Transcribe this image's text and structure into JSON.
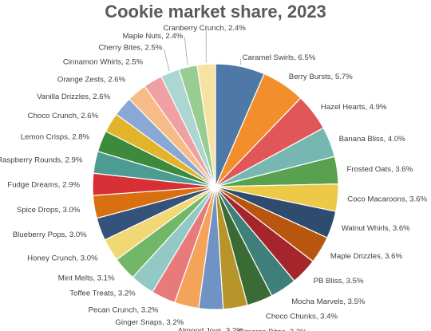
{
  "chart_data": {
    "type": "pie",
    "title": "Cookie market share, 2023",
    "label_format": "{name}, {value}%",
    "series": [
      {
        "name": "Caramel Swirls",
        "value": 6.5,
        "color": "#4e79a7"
      },
      {
        "name": "Berry Bursts",
        "value": 5.7,
        "color": "#f28e2b"
      },
      {
        "name": "Hazel Hearts",
        "value": 4.9,
        "color": "#e15759"
      },
      {
        "name": "Banana Bliss",
        "value": 4.0,
        "color": "#76b7b2"
      },
      {
        "name": "Frosted Oats",
        "value": 3.6,
        "color": "#59a14f"
      },
      {
        "name": "Coco Macaroons",
        "value": 3.6,
        "color": "#edc948"
      },
      {
        "name": "Walnut Whirls",
        "value": 3.6,
        "color": "#2f4b6e"
      },
      {
        "name": "Maple Drizzles",
        "value": 3.6,
        "color": "#b8560f"
      },
      {
        "name": "PB Bliss",
        "value": 3.5,
        "color": "#a4262c"
      },
      {
        "name": "Mocha Marvels",
        "value": 3.5,
        "color": "#3e7f7a"
      },
      {
        "name": "Choco Chunks",
        "value": 3.4,
        "color": "#3a6b35"
      },
      {
        "name": "S'mores Bites",
        "value": 3.2,
        "color": "#b8952a"
      },
      {
        "name": "Almond Joys",
        "value": 3.2,
        "color": "#6f93c4"
      },
      {
        "name": "Ginger Snaps",
        "value": 3.2,
        "color": "#f4a35b"
      },
      {
        "name": "Pecan Crunch",
        "value": 3.2,
        "color": "#e87a7c"
      },
      {
        "name": "Toffee Treats",
        "value": 3.2,
        "color": "#92c9c4"
      },
      {
        "name": "Mint Melts",
        "value": 3.1,
        "color": "#72b768"
      },
      {
        "name": "Honey Crunch",
        "value": 3.0,
        "color": "#f2d875"
      },
      {
        "name": "Blueberry Pops",
        "value": 3.0,
        "color": "#34527a"
      },
      {
        "name": "Spice Drops",
        "value": 3.0,
        "color": "#d9700f"
      },
      {
        "name": "Fudge Dreams",
        "value": 2.9,
        "color": "#d62f35"
      },
      {
        "name": "Raspberry Rounds",
        "value": 2.9,
        "color": "#4c9c94"
      },
      {
        "name": "Lemon Crisps",
        "value": 2.8,
        "color": "#3e8a3c"
      },
      {
        "name": "Choco Crunch",
        "value": 2.6,
        "color": "#e2b42c"
      },
      {
        "name": "Vanilla Drizzles",
        "value": 2.6,
        "color": "#8aa8d4"
      },
      {
        "name": "Orange Zests",
        "value": 2.6,
        "color": "#f7bb87"
      },
      {
        "name": "Cinnamon Whirls",
        "value": 2.5,
        "color": "#eea0a2"
      },
      {
        "name": "Cherry Bites",
        "value": 2.5,
        "color": "#abd6d2"
      },
      {
        "name": "Maple Nuts",
        "value": 2.4,
        "color": "#98cc90"
      },
      {
        "name": "Cranberry Crunch",
        "value": 2.4,
        "color": "#f6e3a1"
      }
    ]
  }
}
